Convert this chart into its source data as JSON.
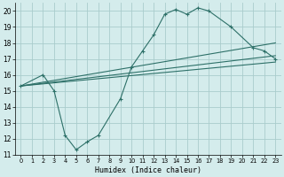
{
  "xlabel": "Humidex (Indice chaleur)",
  "bg_color": "#d4ecec",
  "grid_color": "#aacccc",
  "line_color": "#2d7068",
  "xlim": [
    -0.5,
    23.5
  ],
  "ylim": [
    11,
    20.5
  ],
  "xticks": [
    0,
    1,
    2,
    3,
    4,
    5,
    6,
    7,
    8,
    9,
    10,
    11,
    12,
    13,
    14,
    15,
    16,
    17,
    18,
    19,
    20,
    21,
    22,
    23
  ],
  "yticks": [
    11,
    12,
    13,
    14,
    15,
    16,
    17,
    18,
    19,
    20
  ],
  "series1_x": [
    0,
    2,
    3,
    4,
    5,
    6,
    7,
    9,
    10,
    11,
    12,
    13,
    14,
    15,
    16,
    17,
    19,
    21,
    22,
    23
  ],
  "series1_y": [
    15.3,
    16.0,
    15.0,
    12.2,
    11.3,
    11.8,
    12.2,
    14.5,
    16.5,
    17.5,
    18.5,
    19.8,
    20.1,
    19.8,
    20.2,
    20.0,
    19.0,
    17.7,
    17.5,
    17.0
  ],
  "series2_x": [
    0,
    23
  ],
  "series2_y": [
    15.3,
    18.0
  ],
  "series3_x": [
    0,
    23
  ],
  "series3_y": [
    15.3,
    17.2
  ],
  "series4_x": [
    0,
    23
  ],
  "series4_y": [
    15.3,
    16.8
  ]
}
